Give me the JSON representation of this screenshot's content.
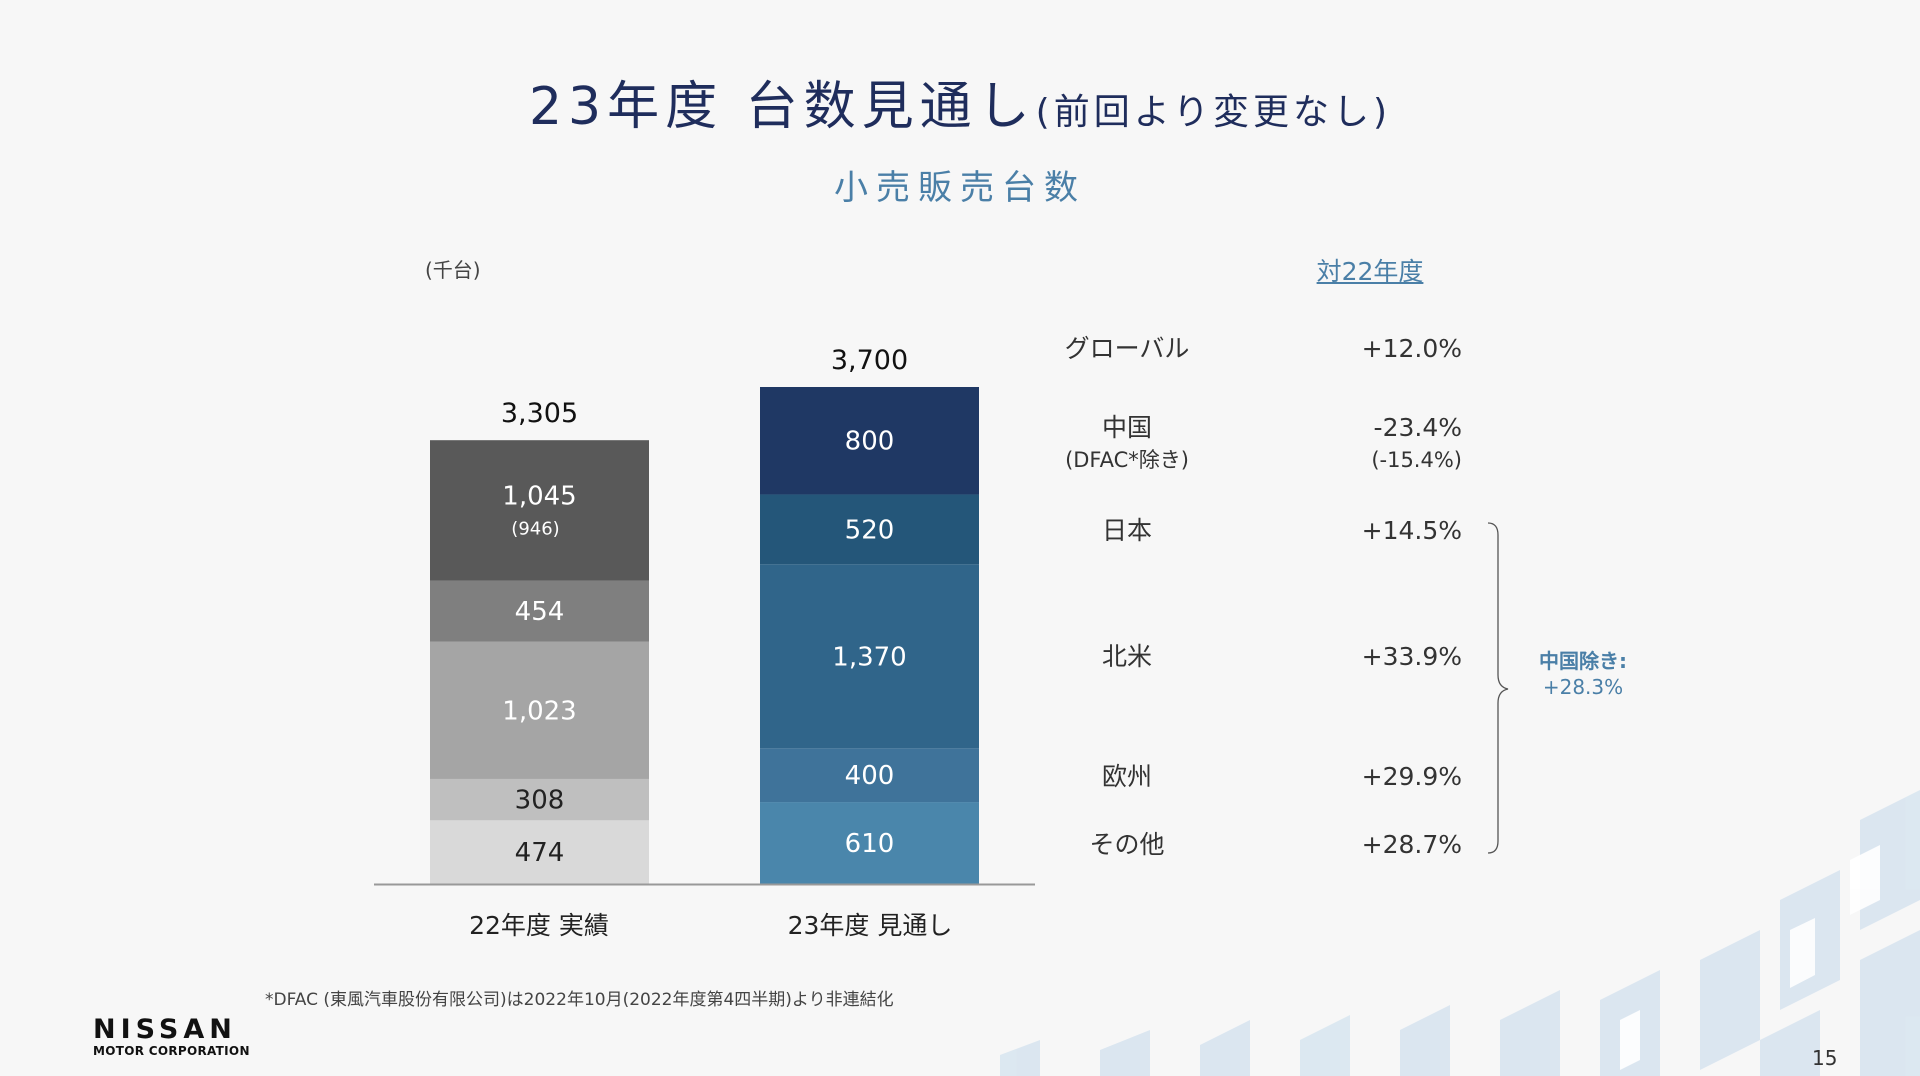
{
  "header": {
    "title_main": "23年度 台数見通し",
    "title_paren": "(前回より変更なし)",
    "subtitle": "小売販売台数"
  },
  "chart_data": {
    "type": "bar",
    "stacked": true,
    "unit_label": "(千台)",
    "categories": [
      "22年度 実績",
      "23年度 見通し"
    ],
    "totals": [
      "3,305",
      "3,700"
    ],
    "total_values": [
      3305,
      3700
    ],
    "stacks": [
      {
        "segments": [
          {
            "value": 474,
            "label": "474",
            "color": "#d9d9d9",
            "text_color": "#222222"
          },
          {
            "value": 308,
            "label": "308",
            "color": "#bfbfbf",
            "text_color": "#222222"
          },
          {
            "value": 1023,
            "label": "1,023",
            "color": "#a5a5a5",
            "text_color": "#ffffff"
          },
          {
            "value": 454,
            "label": "454",
            "color": "#7f7f7f",
            "text_color": "#ffffff"
          },
          {
            "value": 1045,
            "label": "1,045",
            "sublabel": "(946)",
            "color": "#595959",
            "text_color": "#ffffff"
          }
        ]
      },
      {
        "segments": [
          {
            "value": 610,
            "label": "610",
            "color": "#4a86ab",
            "text_color": "#ffffff"
          },
          {
            "value": 400,
            "label": "400",
            "color": "#3f739a",
            "text_color": "#ffffff"
          },
          {
            "value": 1370,
            "label": "1,370",
            "color": "#30658a",
            "text_color": "#ffffff"
          },
          {
            "value": 520,
            "label": "520",
            "color": "#245679",
            "text_color": "#ffffff"
          },
          {
            "value": 800,
            "label": "800",
            "color": "#1f3864",
            "text_color": "#ffffff"
          }
        ]
      }
    ],
    "ylim": [
      0,
      3700
    ]
  },
  "comparison": {
    "header": "対22年度",
    "rows": [
      {
        "label": "グローバル",
        "value": "+12.0%"
      },
      {
        "label": "中国",
        "sublabel": "(DFAC*除き)",
        "value": "-23.4%",
        "subvalue": "(-15.4%)"
      },
      {
        "label": "日本",
        "value": "+14.5%"
      },
      {
        "label": "北米",
        "value": "+33.9%"
      },
      {
        "label": "欧州",
        "value": "+29.9%"
      },
      {
        "label": "その他",
        "value": "+28.7%"
      }
    ],
    "note_label": "中国除き:",
    "note_value": "+28.3%"
  },
  "footnote": "*DFAC (東風汽車股份有限公司)は2022年10月(2022年度第4四半期)より非連結化",
  "logo": {
    "name": "NISSAN",
    "sub": "MOTOR CORPORATION"
  },
  "page_number": "15"
}
